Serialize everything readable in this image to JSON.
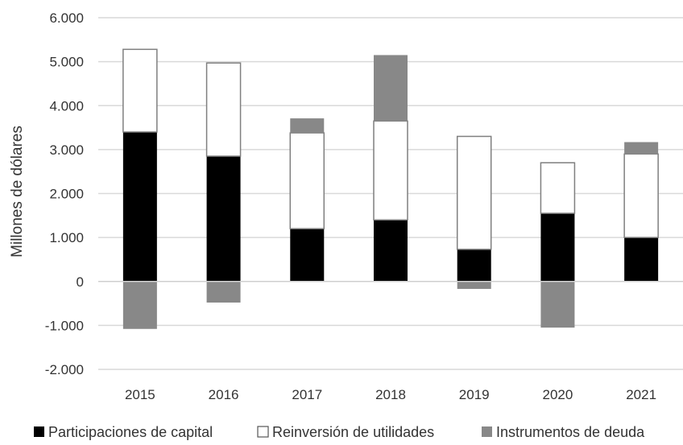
{
  "chart_data": {
    "type": "bar",
    "stacked": true,
    "categories": [
      "2015",
      "2016",
      "2017",
      "2018",
      "2019",
      "2020",
      "2021"
    ],
    "series": [
      {
        "name": "Participaciones de capital",
        "color": "#000000",
        "values": [
          3400,
          2850,
          1200,
          1400,
          730,
          1550,
          1000
        ]
      },
      {
        "name": "Reinversión de utilidades",
        "color": "#ffffff",
        "values": [
          1880,
          2120,
          2180,
          2250,
          2570,
          1150,
          1900
        ]
      },
      {
        "name": "Instrumentos de deuda",
        "color": "#888888",
        "values": [
          -1080,
          -480,
          330,
          1500,
          -170,
          -1050,
          270
        ]
      }
    ],
    "ylabel": "Millones de dólares",
    "ylim": [
      -2000,
      6000
    ],
    "yticks": [
      -2000,
      -1000,
      0,
      1000,
      2000,
      3000,
      4000,
      5000,
      6000
    ],
    "ytick_labels": [
      "-2.000",
      "-1.000",
      "0",
      "1.000",
      "2.000",
      "3.000",
      "4.000",
      "5.000",
      "6.000"
    ],
    "grid": true,
    "legend_position": "bottom"
  }
}
